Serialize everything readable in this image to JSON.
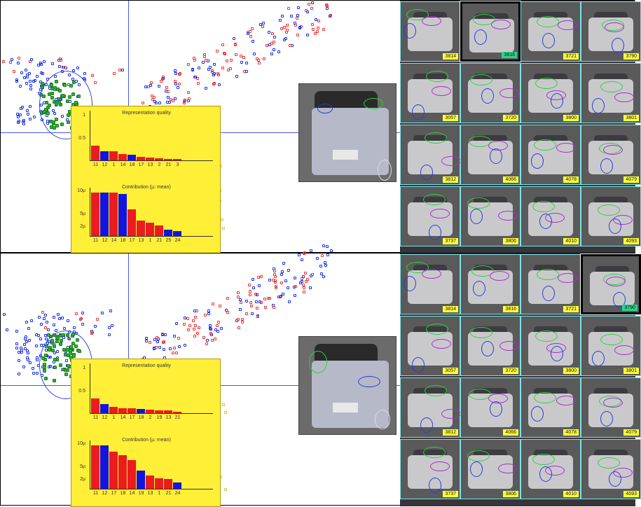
{
  "views": [
    {
      "id": "top",
      "representation_quality": {
        "title": "Representation quality",
        "y_ticks": [
          "1",
          "0.5"
        ],
        "x_labels": [
          "11",
          "12",
          "1",
          "14",
          "18",
          "17",
          "13",
          "2",
          "21",
          "3"
        ],
        "values": [
          0.35,
          0.22,
          0.21,
          0.15,
          0.13,
          0.09,
          0.06,
          0.05,
          0.04,
          0.03
        ],
        "colors": [
          "red",
          "blue",
          "red",
          "red",
          "blue",
          "red",
          "red",
          "red",
          "red",
          "red"
        ]
      },
      "contribution": {
        "title": "Contribution (µ: mean)",
        "y_ticks": [
          "10µ",
          "5µ",
          "2µ"
        ],
        "x_labels": [
          "11",
          "12",
          "14",
          "18",
          "17",
          "13",
          "1",
          "21",
          "25",
          "24"
        ],
        "values": [
          1.0,
          1.0,
          1.0,
          0.96,
          0.62,
          0.35,
          0.3,
          0.24,
          0.14,
          0.11
        ],
        "colors": [
          "red",
          "blue",
          "red",
          "blue",
          "red",
          "red",
          "red",
          "red",
          "blue",
          "blue"
        ]
      },
      "thumbnails": [
        {
          "label": "3814",
          "selected": false
        },
        {
          "label": "3816",
          "selected": true
        },
        {
          "label": "3721",
          "selected": false
        },
        {
          "label": "3790",
          "selected": false
        },
        {
          "label": "3057",
          "selected": false
        },
        {
          "label": "3720",
          "selected": false
        },
        {
          "label": "3800",
          "selected": false
        },
        {
          "label": "3801",
          "selected": false
        },
        {
          "label": "3812",
          "selected": false
        },
        {
          "label": "4066",
          "selected": false
        },
        {
          "label": "4078",
          "selected": false
        },
        {
          "label": "4079",
          "selected": false
        },
        {
          "label": "3737",
          "selected": false
        },
        {
          "label": "3806",
          "selected": false
        },
        {
          "label": "4010",
          "selected": false
        },
        {
          "label": "4093",
          "selected": false
        }
      ]
    },
    {
      "id": "bottom",
      "representation_quality": {
        "title": "Representation quality",
        "y_ticks": [
          "1",
          "0.5"
        ],
        "x_labels": [
          "11",
          "12",
          "1",
          "14",
          "17",
          "18",
          "2",
          "19",
          "13",
          "21"
        ],
        "values": [
          0.35,
          0.22,
          0.15,
          0.12,
          0.12,
          0.1,
          0.08,
          0.07,
          0.06,
          0.04
        ],
        "colors": [
          "red",
          "blue",
          "red",
          "red",
          "red",
          "blue",
          "red",
          "red",
          "red",
          "red"
        ]
      },
      "contribution": {
        "title": "Contribution (µ: mean)",
        "y_ticks": [
          "10µ",
          "5µ",
          "2µ"
        ],
        "x_labels": [
          "11",
          "12",
          "17",
          "18",
          "14",
          "19",
          "13",
          "1",
          "21",
          "24"
        ],
        "values": [
          1.0,
          1.0,
          0.85,
          0.78,
          0.66,
          0.42,
          0.3,
          0.24,
          0.22,
          0.14
        ],
        "colors": [
          "red",
          "blue",
          "red",
          "red",
          "red",
          "blue",
          "red",
          "red",
          "red",
          "blue"
        ]
      },
      "thumbnails": [
        {
          "label": "3814",
          "selected": false
        },
        {
          "label": "3816",
          "selected": false
        },
        {
          "label": "3721",
          "selected": false
        },
        {
          "label": "3790",
          "selected": true
        },
        {
          "label": "3057",
          "selected": false
        },
        {
          "label": "3720",
          "selected": false
        },
        {
          "label": "3800",
          "selected": false
        },
        {
          "label": "3801",
          "selected": false
        },
        {
          "label": "3812",
          "selected": false
        },
        {
          "label": "4066",
          "selected": false
        },
        {
          "label": "4078",
          "selected": false
        },
        {
          "label": "4079",
          "selected": false
        },
        {
          "label": "3737",
          "selected": false
        },
        {
          "label": "3806",
          "selected": false
        },
        {
          "label": "4010",
          "selected": false
        },
        {
          "label": "4093",
          "selected": false
        }
      ]
    }
  ],
  "colors": {
    "axis": "#4a56ff",
    "panel_bg": "#ffef37",
    "bar_red": "#ea1c1c",
    "bar_blue": "#1414e0",
    "label_bg": "#ffff3c",
    "selected_label_bg": "#2ad68a",
    "tile_border": "#7be2e8"
  },
  "icons": {
    "selection_ring": "circle-outline",
    "feature_marks": "ellipse-outline"
  }
}
